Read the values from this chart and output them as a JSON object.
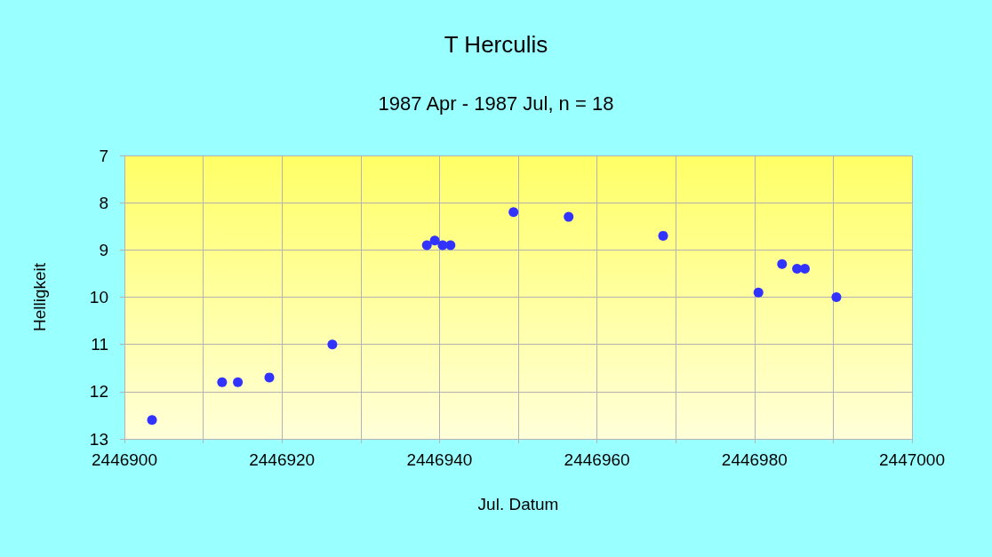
{
  "chart_data": {
    "type": "scatter",
    "title": "T Herculis",
    "subtitle": "1987 Apr - 1987 Jul, n = 18",
    "xlabel": "Jul. Datum",
    "ylabel": "Helligkeit",
    "x": [
      2446903.5,
      2446912.4,
      2446914.4,
      2446918.4,
      2446926.4,
      2446938.4,
      2446939.4,
      2446940.4,
      2446941.4,
      2446949.4,
      2446956.4,
      2446968.4,
      2446980.5,
      2446983.5,
      2446985.4,
      2446986.4,
      2446990.4
    ],
    "values": [
      12.6,
      11.8,
      11.8,
      11.7,
      11.0,
      8.9,
      8.8,
      8.9,
      8.9,
      8.2,
      8.3,
      8.7,
      9.9,
      9.3,
      9.4,
      9.4,
      10.0
    ],
    "color": "#3333ff",
    "marker": "circle",
    "grid": true,
    "xlim": [
      2446900,
      2447000
    ],
    "xticks": [
      2446900,
      {
        "value": 2446910,
        "label": null
      },
      2446920,
      {
        "value": 2446930,
        "label": null
      },
      2446940,
      {
        "value": 2446950,
        "label": null
      },
      2446960,
      {
        "value": 2446970,
        "label": null
      },
      2446980,
      {
        "value": 2446990,
        "label": null
      },
      2447000
    ],
    "ylim": [
      13,
      7
    ],
    "yticks": [
      7,
      8,
      9,
      10,
      11,
      12,
      13
    ]
  }
}
